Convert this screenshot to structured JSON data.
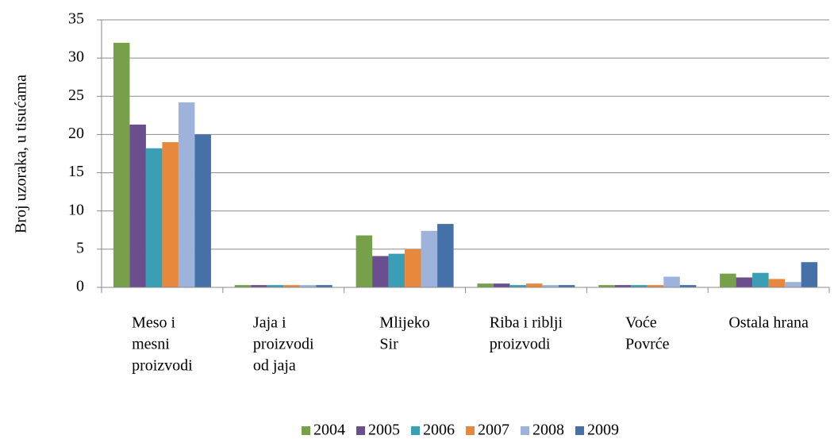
{
  "chart_data": {
    "type": "bar",
    "y_label": "Broj uzoraka, u tisućama",
    "categories": [
      [
        "Meso i",
        "mesni",
        "proizvodi"
      ],
      [
        "Jaja i",
        "proizvodi",
        "od jaja"
      ],
      [
        "Mlijeko",
        "Sir"
      ],
      [
        "Riba i riblji",
        "proizvodi"
      ],
      [
        "Voće",
        "Povrće"
      ],
      [
        "Ostala hrana"
      ]
    ],
    "series": [
      {
        "name": "2004",
        "color": "#77a04b",
        "values": [
          32,
          0.3,
          6.8,
          0.5,
          0.3,
          1.8
        ]
      },
      {
        "name": "2005",
        "color": "#6b4e8e",
        "values": [
          21.3,
          0.3,
          4.1,
          0.5,
          0.3,
          1.3
        ]
      },
      {
        "name": "2006",
        "color": "#3a9fb5",
        "values": [
          18.2,
          0.3,
          4.4,
          0.3,
          0.3,
          1.9
        ]
      },
      {
        "name": "2007",
        "color": "#e8883c",
        "values": [
          19,
          0.3,
          5,
          0.5,
          0.3,
          1.1
        ]
      },
      {
        "name": "2008",
        "color": "#9db3dc",
        "values": [
          24.2,
          0.3,
          7.4,
          0.3,
          1.4,
          0.7
        ]
      },
      {
        "name": "2009",
        "color": "#4570a8",
        "values": [
          20,
          0.3,
          8.3,
          0.3,
          0.3,
          3.3
        ]
      }
    ],
    "ylim": [
      0,
      35
    ],
    "yticks": [
      0,
      5,
      10,
      15,
      20,
      25,
      30,
      35
    ],
    "grid": true,
    "legend": "bottom"
  }
}
